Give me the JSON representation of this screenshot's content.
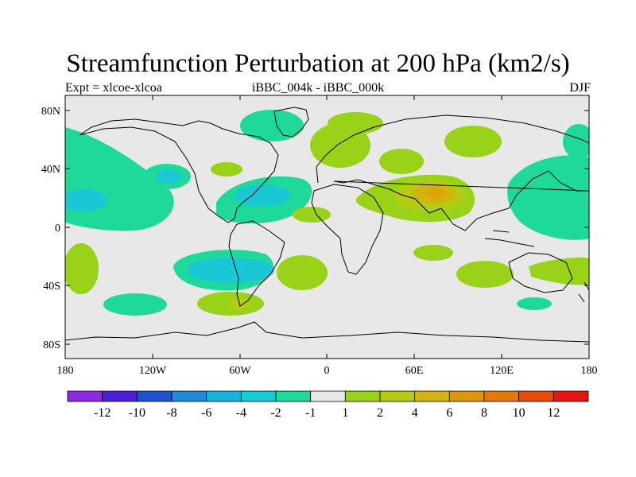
{
  "title": "Streamfunction Perturbation at 200 hPa (km2/s)",
  "left_string": "Expt = xlcoe-xlcoa",
  "center_string": "iBBC_004k - iBBC_000k",
  "right_string": "DJF",
  "y_ticks": [
    "80N",
    "40N",
    "0",
    "40S",
    "80S"
  ],
  "x_ticks": [
    "180",
    "120W",
    "60W",
    "0",
    "60E",
    "120E",
    "180"
  ],
  "colorbar": {
    "colors": [
      "#8a2be2",
      "#4b1fd8",
      "#1e50d0",
      "#1e8ad8",
      "#19b4dc",
      "#14ccd4",
      "#1ed99a",
      "#e8e8e8",
      "#9ad21a",
      "#b4cc14",
      "#d2b410",
      "#e0960a",
      "#e6780a",
      "#e64a0a",
      "#e61414"
    ],
    "labels": [
      "-12",
      "-10",
      "-8",
      "-6",
      "-4",
      "-2",
      "-1",
      "1",
      "2",
      "4",
      "6",
      "8",
      "10",
      "12"
    ]
  },
  "chart_data": {
    "type": "filled contour map",
    "variable": "Streamfunction Perturbation at 200 hPa",
    "units": "km2/s",
    "season": "DJF",
    "levels": [
      -12,
      -10,
      -8,
      -6,
      -4,
      -2,
      -1,
      1,
      2,
      4,
      6,
      8,
      10,
      12
    ],
    "lon_range": [
      -180,
      180
    ],
    "lat_range": [
      -90,
      90
    ],
    "features": [
      {
        "name": "N Pacific / N America anticyclone",
        "lon": -170,
        "lat": 15,
        "value": -2.5
      },
      {
        "name": "NE Pacific cyclonic cell",
        "lon": -130,
        "lat": 35,
        "value": -2
      },
      {
        "name": "N Atlantic cyclonic cell",
        "lon": -60,
        "lat": 25,
        "value": -2
      },
      {
        "name": "Canada cell",
        "lon": -55,
        "lat": 72,
        "value": -1.5
      },
      {
        "name": "Europe cell",
        "lon": 15,
        "lat": 50,
        "value": 1.5
      },
      {
        "name": "Middle East / S Asia maximum",
        "lon": 60,
        "lat": 20,
        "value": 5
      },
      {
        "name": "Siberia cell",
        "lon": 105,
        "lat": 60,
        "value": 1.5
      },
      {
        "name": "W Pacific cyclonic cell",
        "lon": 150,
        "lat": 15,
        "value": -2
      },
      {
        "name": "S Pacific cyclonic cell",
        "lon": -80,
        "lat": -25,
        "value": -3
      },
      {
        "name": "S Atlantic cell",
        "lon": -30,
        "lat": -30,
        "value": 1.5
      },
      {
        "name": "S Indian Ocean cell",
        "lon": 90,
        "lat": -30,
        "value": 1.5
      },
      {
        "name": "Southern S America cell",
        "lon": -60,
        "lat": -57,
        "value": 3
      },
      {
        "name": "SE Pacific cell",
        "lon": -160,
        "lat": -30,
        "value": 1.5
      }
    ]
  }
}
